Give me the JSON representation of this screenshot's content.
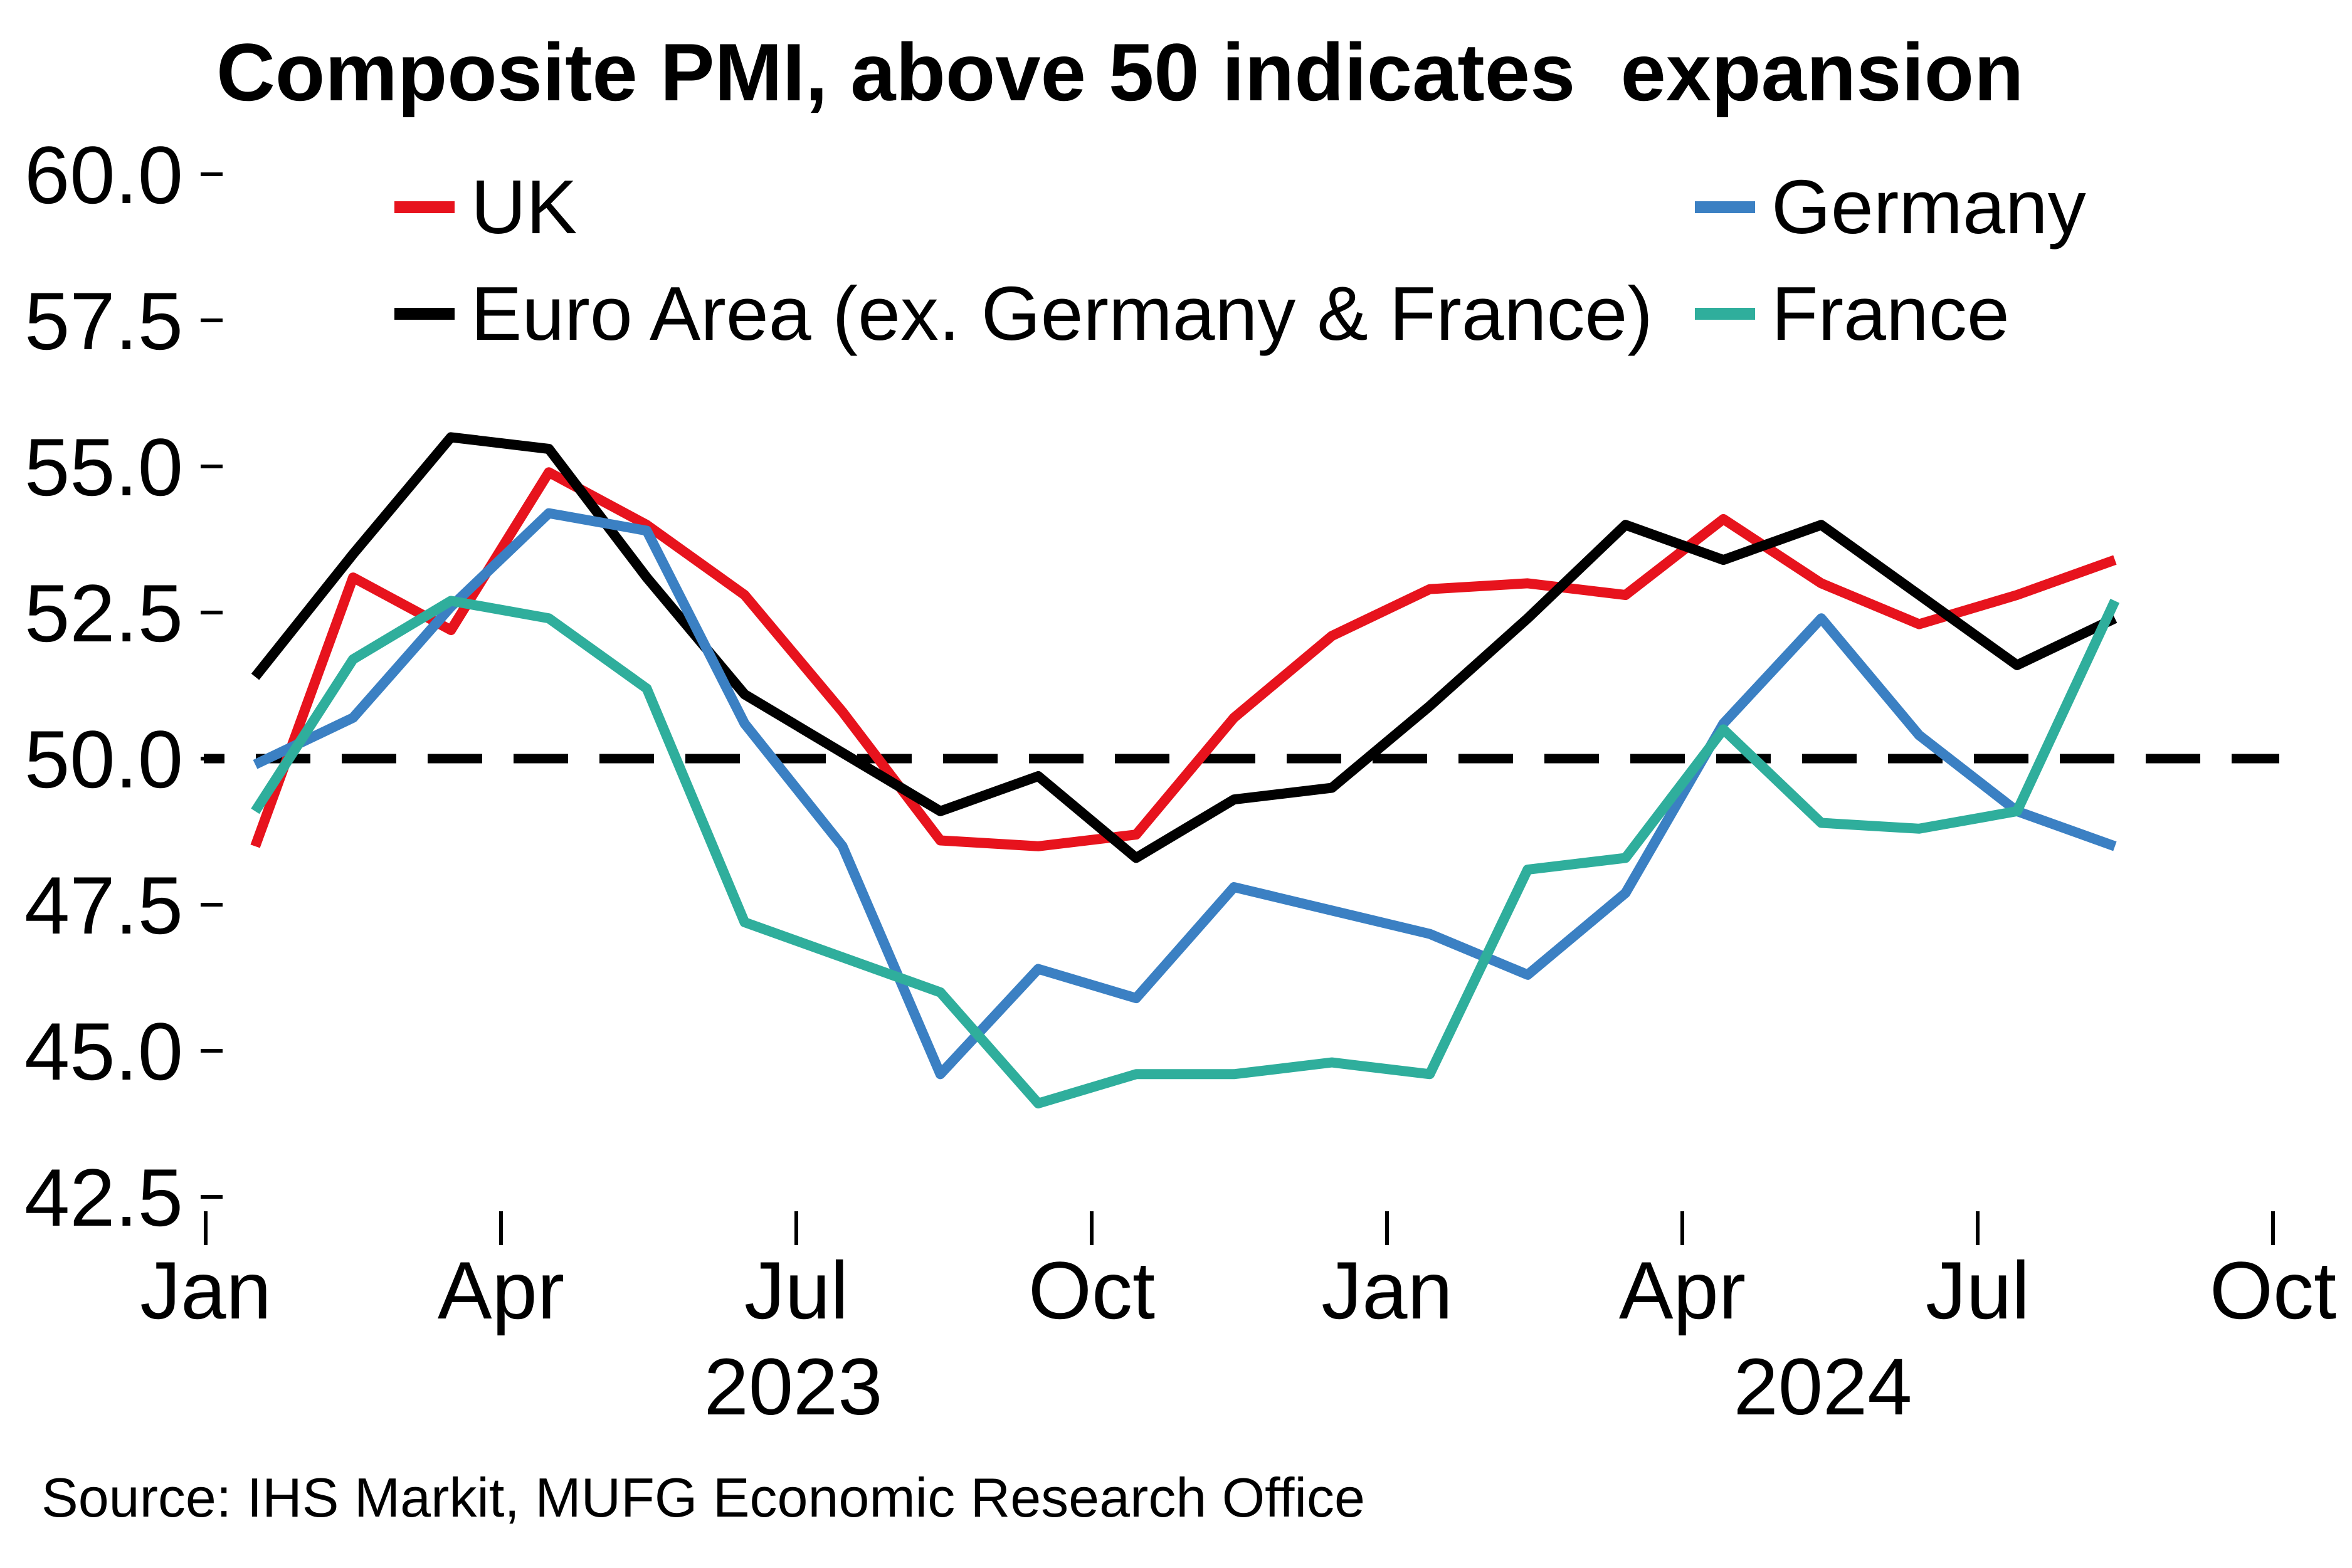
{
  "title": "Composite PMI, above 50 indicates  expansion",
  "source": "Source: IHS Markit, MUFG Economic Research Office",
  "colors": {
    "uk": "#e7131d",
    "euro_area_ex": "#000000",
    "germany": "#3b80c3",
    "france": "#2fae9c",
    "reference_line": "#000000"
  },
  "legend": [
    {
      "label": "UK",
      "color": "#e7131d"
    },
    {
      "label": "Germany",
      "color": "#3b80c3"
    },
    {
      "label": "Euro Area (ex. Germany & France)",
      "color": "#000000"
    },
    {
      "label": "France",
      "color": "#2fae9c"
    }
  ],
  "chart_data": {
    "type": "line",
    "title": "Composite PMI, above 50 indicates  expansion",
    "x": [
      "Jan 2023",
      "Feb 2023",
      "Mar 2023",
      "Apr 2023",
      "May 2023",
      "Jun 2023",
      "Jul 2023",
      "Aug 2023",
      "Sep 2023",
      "Oct 2023",
      "Nov 2023",
      "Dec 2023",
      "Jan 2024",
      "Feb 2024",
      "Mar 2024",
      "Apr 2024",
      "May 2024",
      "Jun 2024",
      "Jul 2024",
      "Aug 2024"
    ],
    "series": [
      {
        "name": "UK",
        "color": "#e7131d",
        "values": [
          48.5,
          53.1,
          52.2,
          54.9,
          54.0,
          52.8,
          50.8,
          48.6,
          48.5,
          48.7,
          50.7,
          52.1,
          52.9,
          53.0,
          52.8,
          54.1,
          53.0,
          52.3,
          52.8,
          53.4
        ]
      },
      {
        "name": "Euro Area (ex. Germany & France)",
        "color": "#000000",
        "values": [
          51.4,
          53.5,
          55.5,
          55.3,
          53.1,
          51.1,
          50.1,
          49.1,
          49.7,
          48.3,
          49.3,
          49.5,
          50.9,
          52.4,
          54.0,
          53.4,
          54.0,
          52.8,
          51.6,
          52.4
        ]
      },
      {
        "name": "Germany",
        "color": "#3b80c3",
        "values": [
          49.9,
          50.7,
          52.6,
          54.2,
          53.9,
          50.6,
          48.5,
          44.6,
          46.4,
          45.9,
          47.8,
          47.4,
          47.0,
          46.3,
          47.7,
          50.6,
          52.4,
          50.4,
          49.1,
          48.5
        ]
      },
      {
        "name": "France",
        "color": "#2fae9c",
        "values": [
          49.1,
          51.7,
          52.7,
          52.4,
          51.2,
          47.2,
          46.6,
          46.0,
          44.1,
          44.6,
          44.6,
          44.8,
          44.6,
          48.1,
          48.3,
          50.5,
          48.9,
          48.8,
          49.1,
          52.7
        ]
      }
    ],
    "y_ticks": [
      "60.0",
      "57.5",
      "55.0",
      "52.5",
      "50.0",
      "47.5",
      "45.0",
      "42.5"
    ],
    "ylim": [
      42.5,
      60.0
    ],
    "reference_line": 50.0,
    "x_axis": {
      "tick_labels": [
        "Jan",
        "Apr",
        "Jul",
        "Oct",
        "Jan",
        "Apr",
        "Jul",
        "Oct"
      ],
      "year_labels": [
        "2023",
        "2024"
      ]
    },
    "xlabel": "",
    "ylabel": "",
    "grid": false,
    "legend_position": "top, two columns"
  }
}
